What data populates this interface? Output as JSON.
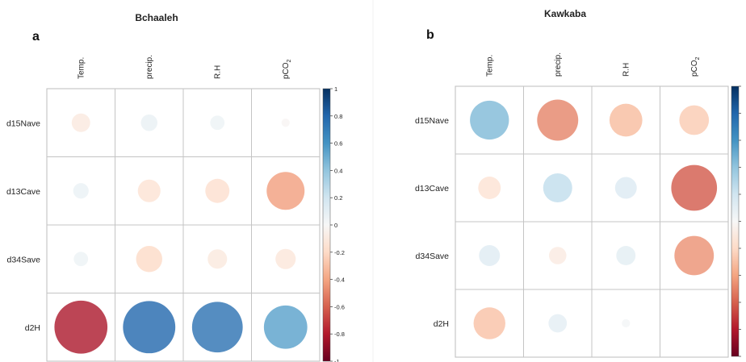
{
  "chart_data": [
    {
      "type": "heatmap",
      "title": "Bchaaleh",
      "panel_label": "a",
      "columns": [
        "Temp.",
        "precip.",
        "R.H",
        "pCO2"
      ],
      "rows": [
        "d15Nave",
        "d13Cave",
        "d34Save",
        "d2H"
      ],
      "values": [
        [
          -0.1,
          0.08,
          0.06,
          -0.02
        ],
        [
          0.07,
          -0.15,
          -0.17,
          -0.42
        ],
        [
          0.06,
          -0.2,
          -0.11,
          -0.12
        ],
        [
          -0.82,
          0.8,
          0.75,
          0.55
        ]
      ],
      "colorbar": {
        "min": -1,
        "max": 1,
        "ticks": [
          1,
          0.8,
          0.6,
          0.4,
          0.2,
          0,
          -0.2,
          -0.4,
          -0.6,
          -0.8,
          -1
        ],
        "tick_labels": [
          "1",
          "0.8",
          "0.6",
          "0.4",
          "0.2",
          "0",
          "-0.2",
          "-0.4",
          "-0.6",
          "-0.8",
          "-1"
        ]
      }
    },
    {
      "type": "heatmap",
      "title": "Kawkaba",
      "panel_label": "b",
      "columns": [
        "Temp.",
        "precip.",
        "R.H",
        "pCO2"
      ],
      "rows": [
        "d15Nave",
        "d13Cave",
        "d34Save",
        "d2H"
      ],
      "values": [
        [
          0.45,
          -0.5,
          -0.32,
          -0.26
        ],
        [
          -0.15,
          0.25,
          0.14,
          -0.62
        ],
        [
          0.13,
          -0.09,
          0.11,
          -0.46
        ],
        [
          -0.3,
          0.1,
          0.02,
          0.0
        ]
      ],
      "colorbar": {
        "min": -1,
        "max": 1,
        "ticks": [
          1,
          0.8,
          0.6,
          0.4,
          0.2,
          0,
          -0.2,
          -0.4,
          -0.6,
          -0.8,
          -1
        ],
        "tick_labels": [
          "",
          "",
          "",
          "",
          "",
          "",
          "",
          "",
          "",
          "",
          ""
        ]
      }
    }
  ]
}
